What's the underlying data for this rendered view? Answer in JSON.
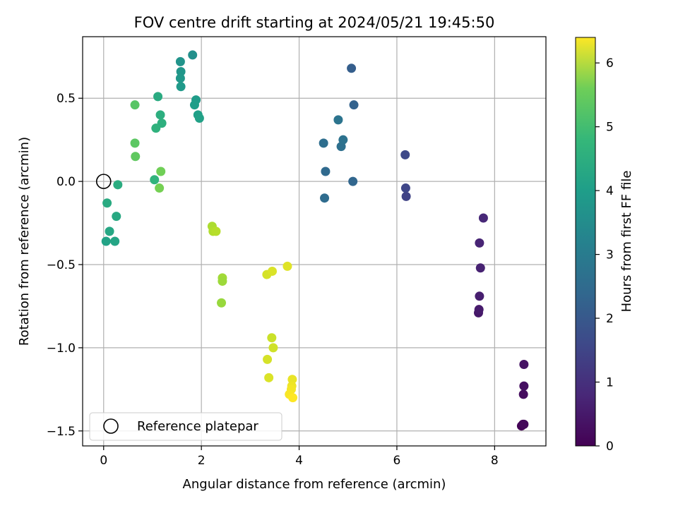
{
  "chart_data": {
    "type": "scatter",
    "title": "FOV centre drift starting at 2024/05/21 19:45:50",
    "xlabel": "Angular distance from reference (arcmin)",
    "ylabel": "Rotation from reference (arcmin)",
    "xlim": [
      -0.43,
      9.05
    ],
    "ylim": [
      -1.59,
      0.87
    ],
    "xticks": [
      0,
      2,
      4,
      6,
      8
    ],
    "yticks": [
      -1.5,
      -1.0,
      -0.5,
      0.0,
      0.5
    ],
    "xtick_labels": [
      "0",
      "2",
      "4",
      "6",
      "8"
    ],
    "ytick_labels": [
      "−1.5",
      "−1.0",
      "−0.5",
      "0.0",
      "0.5"
    ],
    "grid": true,
    "colormap": "viridis",
    "colorbar": {
      "label": "Hours from first FF file",
      "range": [
        0,
        6.4
      ],
      "ticks": [
        0,
        1,
        2,
        3,
        4,
        5,
        6
      ],
      "tick_labels": [
        "0",
        "1",
        "2",
        "3",
        "4",
        "5",
        "6"
      ]
    },
    "legend": {
      "position": "lower-left",
      "entries": [
        "Reference platepar"
      ]
    },
    "reference_point": {
      "x": 0,
      "y": 0
    },
    "points": [
      {
        "x": 8.55,
        "y": -1.47,
        "h": 0.02
      },
      {
        "x": 8.58,
        "y": -1.46,
        "h": 0.08
      },
      {
        "x": 8.6,
        "y": -1.46,
        "h": 0.14
      },
      {
        "x": 8.59,
        "y": -1.28,
        "h": 0.2
      },
      {
        "x": 8.6,
        "y": -1.23,
        "h": 0.26
      },
      {
        "x": 8.6,
        "y": -1.1,
        "h": 0.32
      },
      {
        "x": 7.67,
        "y": -0.79,
        "h": 0.42
      },
      {
        "x": 7.68,
        "y": -0.77,
        "h": 0.48
      },
      {
        "x": 7.69,
        "y": -0.69,
        "h": 0.54
      },
      {
        "x": 7.71,
        "y": -0.52,
        "h": 0.6
      },
      {
        "x": 7.69,
        "y": -0.37,
        "h": 0.66
      },
      {
        "x": 7.77,
        "y": -0.22,
        "h": 0.72
      },
      {
        "x": 6.19,
        "y": -0.09,
        "h": 1.3
      },
      {
        "x": 6.18,
        "y": -0.04,
        "h": 1.36
      },
      {
        "x": 6.17,
        "y": 0.16,
        "h": 1.42
      },
      {
        "x": 5.1,
        "y": 0.0,
        "h": 2.1
      },
      {
        "x": 4.54,
        "y": 0.06,
        "h": 2.2
      },
      {
        "x": 4.52,
        "y": -0.1,
        "h": 2.25
      },
      {
        "x": 4.5,
        "y": 0.23,
        "h": 2.3
      },
      {
        "x": 4.86,
        "y": 0.21,
        "h": 2.35
      },
      {
        "x": 4.9,
        "y": 0.25,
        "h": 2.4
      },
      {
        "x": 4.8,
        "y": 0.37,
        "h": 2.45
      },
      {
        "x": 5.12,
        "y": 0.46,
        "h": 2.0
      },
      {
        "x": 5.07,
        "y": 0.68,
        "h": 1.9
      },
      {
        "x": 1.82,
        "y": 0.76,
        "h": 3.2
      },
      {
        "x": 1.57,
        "y": 0.72,
        "h": 3.3
      },
      {
        "x": 1.58,
        "y": 0.66,
        "h": 3.35
      },
      {
        "x": 1.57,
        "y": 0.62,
        "h": 3.4
      },
      {
        "x": 1.58,
        "y": 0.57,
        "h": 3.45
      },
      {
        "x": 1.89,
        "y": 0.49,
        "h": 3.5
      },
      {
        "x": 1.86,
        "y": 0.46,
        "h": 3.55
      },
      {
        "x": 1.93,
        "y": 0.4,
        "h": 3.6
      },
      {
        "x": 1.96,
        "y": 0.38,
        "h": 3.65
      },
      {
        "x": 1.11,
        "y": 0.51,
        "h": 3.9
      },
      {
        "x": 1.16,
        "y": 0.4,
        "h": 4.0
      },
      {
        "x": 1.19,
        "y": 0.35,
        "h": 4.05
      },
      {
        "x": 1.07,
        "y": 0.32,
        "h": 4.1
      },
      {
        "x": 1.04,
        "y": 0.01,
        "h": 4.15
      },
      {
        "x": 0.05,
        "y": -0.36,
        "h": 3.7
      },
      {
        "x": 0.23,
        "y": -0.36,
        "h": 3.75
      },
      {
        "x": 0.12,
        "y": -0.3,
        "h": 3.8
      },
      {
        "x": 0.26,
        "y": -0.21,
        "h": 3.85
      },
      {
        "x": 0.07,
        "y": -0.13,
        "h": 3.9
      },
      {
        "x": 0.29,
        "y": -0.02,
        "h": 3.95
      },
      {
        "x": 0.64,
        "y": 0.46,
        "h": 4.7
      },
      {
        "x": 0.64,
        "y": 0.23,
        "h": 4.75
      },
      {
        "x": 0.65,
        "y": 0.15,
        "h": 4.8
      },
      {
        "x": 1.17,
        "y": 0.06,
        "h": 5.0
      },
      {
        "x": 1.14,
        "y": -0.04,
        "h": 5.05
      },
      {
        "x": 2.22,
        "y": -0.27,
        "h": 5.6
      },
      {
        "x": 2.24,
        "y": -0.3,
        "h": 5.65
      },
      {
        "x": 2.3,
        "y": -0.3,
        "h": 5.7
      },
      {
        "x": 2.43,
        "y": -0.58,
        "h": 5.5
      },
      {
        "x": 2.43,
        "y": -0.6,
        "h": 5.45
      },
      {
        "x": 2.41,
        "y": -0.73,
        "h": 5.4
      },
      {
        "x": 3.34,
        "y": -0.56,
        "h": 6.0
      },
      {
        "x": 3.45,
        "y": -0.54,
        "h": 6.05
      },
      {
        "x": 3.76,
        "y": -0.51,
        "h": 6.1
      },
      {
        "x": 3.44,
        "y": -0.94,
        "h": 5.9
      },
      {
        "x": 3.47,
        "y": -1.0,
        "h": 5.95
      },
      {
        "x": 3.35,
        "y": -1.07,
        "h": 6.0
      },
      {
        "x": 3.38,
        "y": -1.18,
        "h": 6.05
      },
      {
        "x": 3.86,
        "y": -1.19,
        "h": 6.2
      },
      {
        "x": 3.85,
        "y": -1.23,
        "h": 6.25
      },
      {
        "x": 3.84,
        "y": -1.25,
        "h": 6.3
      },
      {
        "x": 3.8,
        "y": -1.28,
        "h": 6.35
      },
      {
        "x": 3.87,
        "y": -1.3,
        "h": 6.4
      }
    ]
  }
}
